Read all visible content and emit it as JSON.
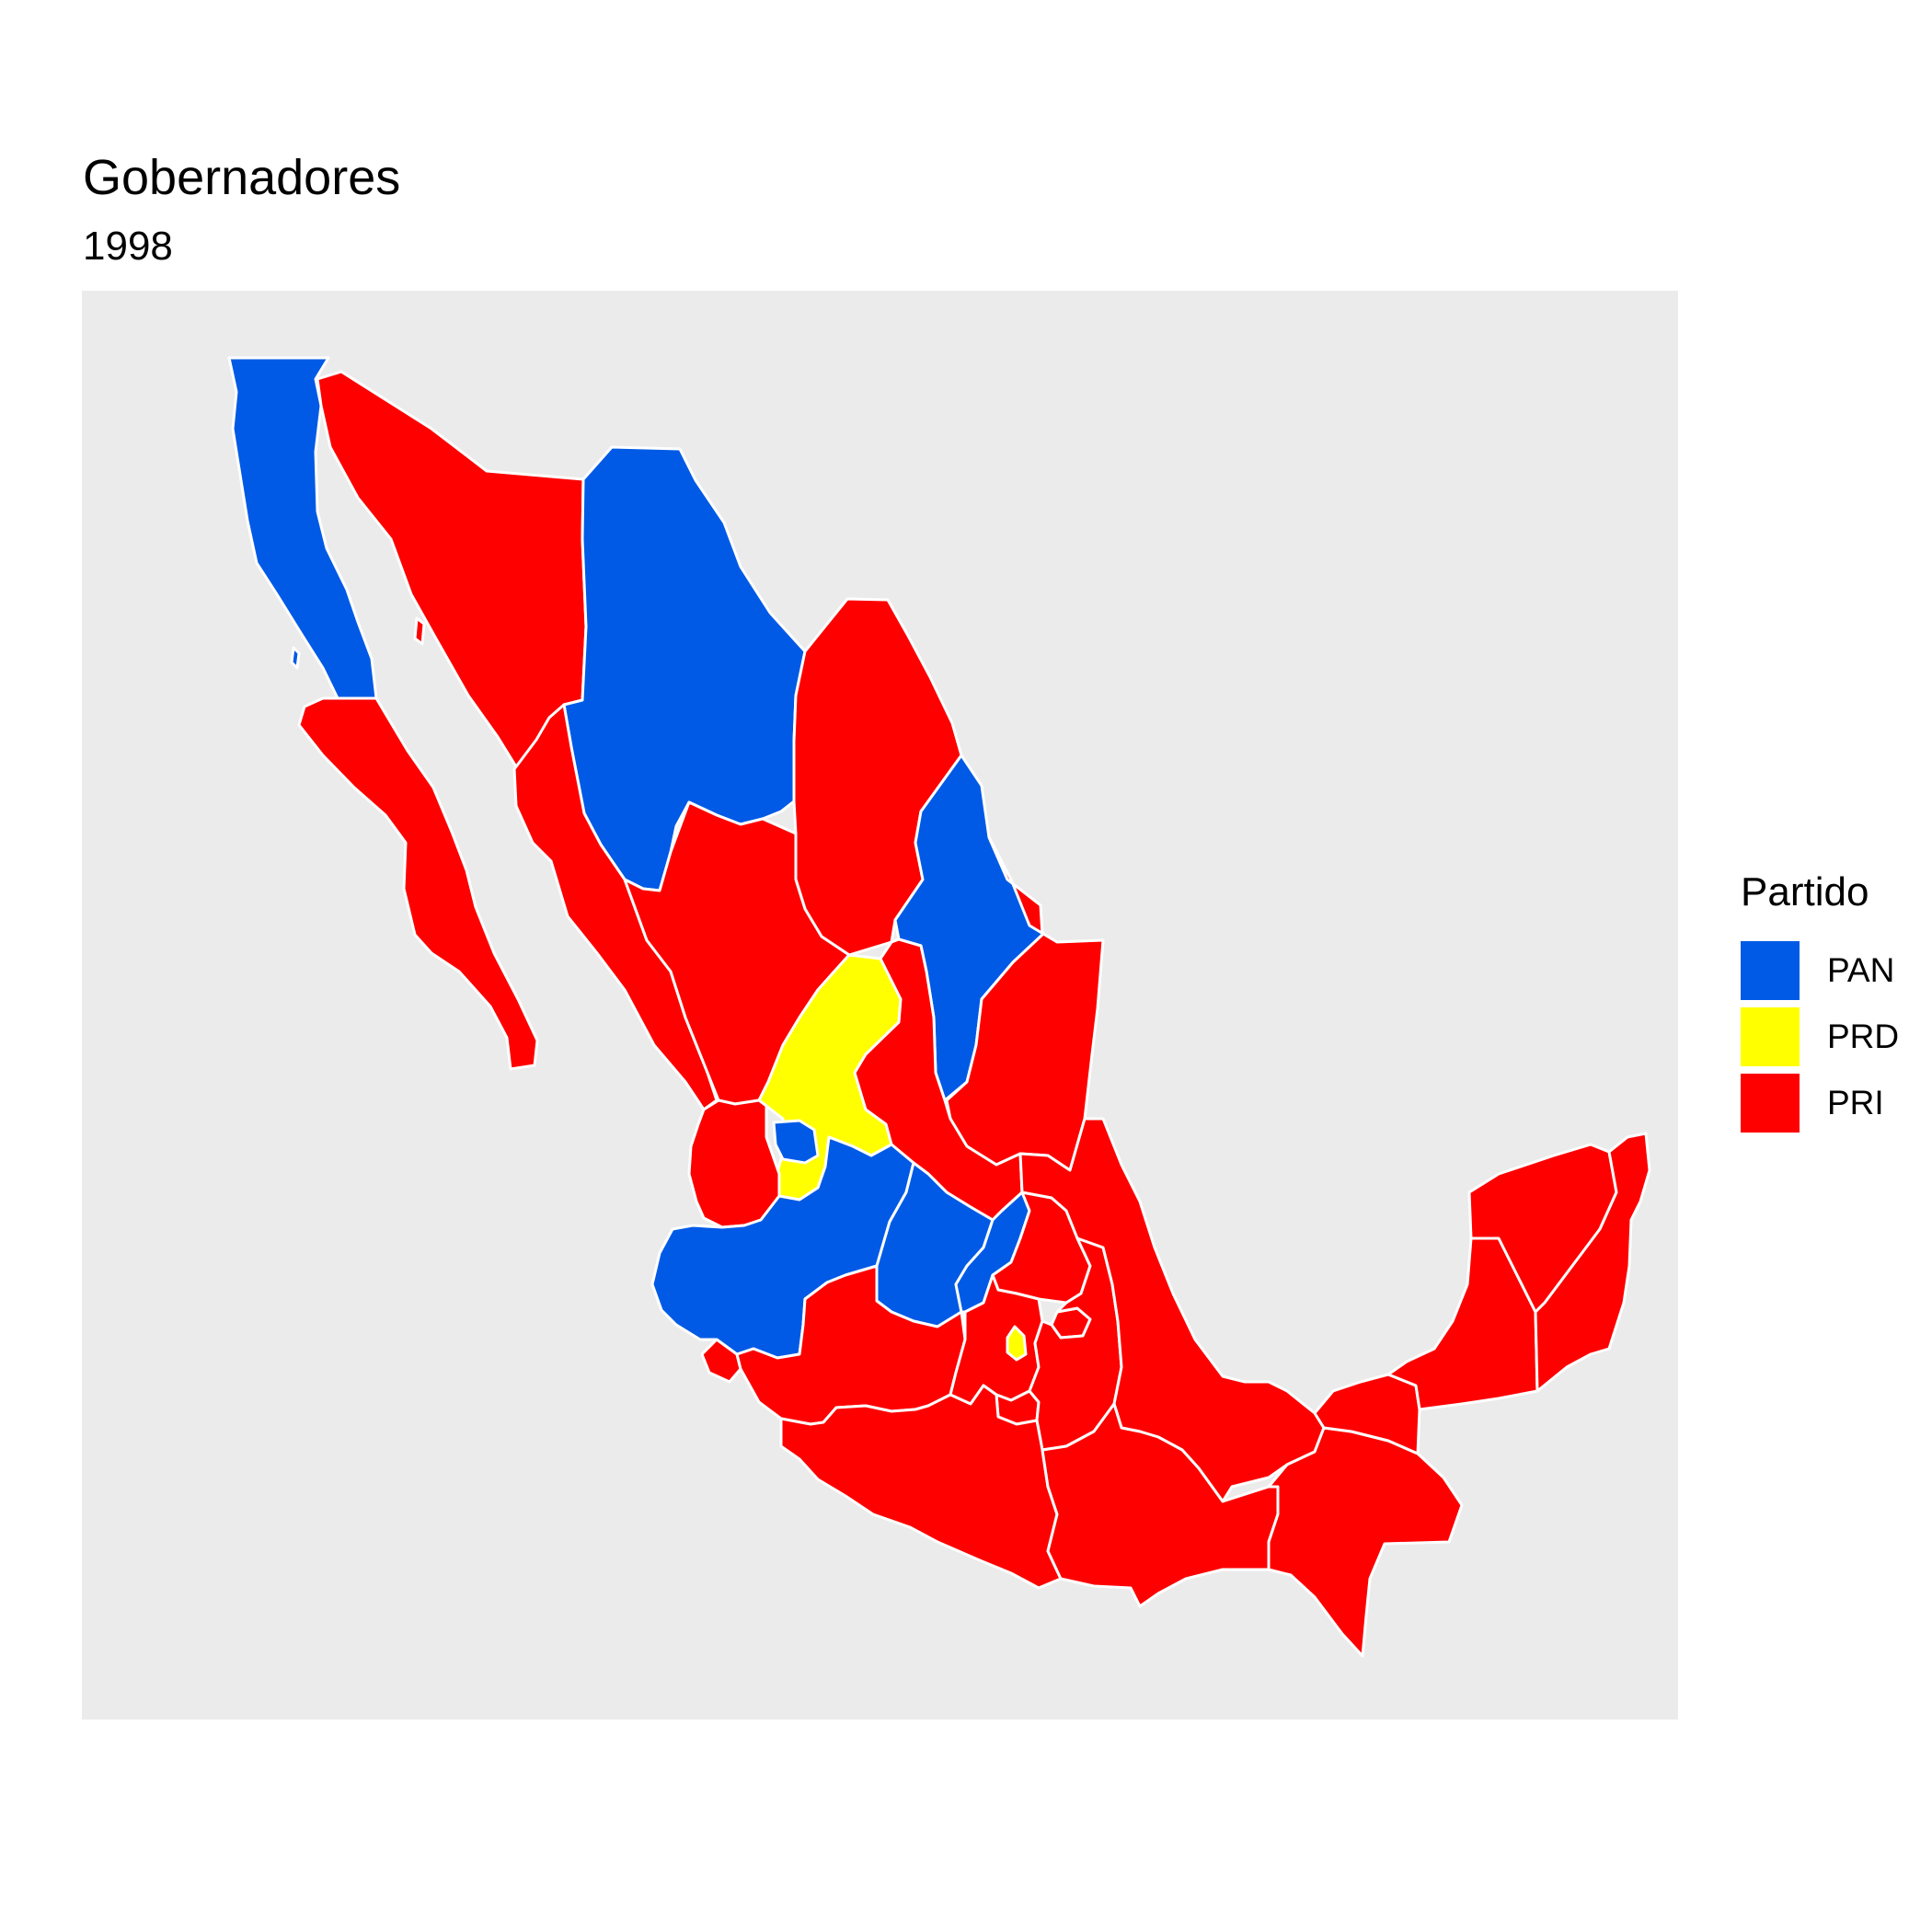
{
  "title": "Gobernadores",
  "subtitle": "1998",
  "legend": {
    "title": "Partido",
    "items": [
      {
        "label": "PAN",
        "color": "#005ae6"
      },
      {
        "label": "PRD",
        "color": "#ffff00"
      },
      {
        "label": "PRI",
        "color": "#ff0000"
      }
    ]
  },
  "colors": {
    "panel_background": "#ebebeb",
    "border": "#ffffff"
  },
  "chart_data": {
    "type": "choropleth",
    "title": "Gobernadores",
    "subtitle": "1998",
    "legend_title": "Partido",
    "legend_position": "right",
    "categories": [
      "PAN",
      "PRD",
      "PRI"
    ],
    "regions": [
      {
        "state": "Baja California",
        "party": "PAN"
      },
      {
        "state": "Baja California Sur",
        "party": "PRI"
      },
      {
        "state": "Sonora",
        "party": "PRI"
      },
      {
        "state": "Chihuahua",
        "party": "PAN"
      },
      {
        "state": "Coahuila",
        "party": "PRI"
      },
      {
        "state": "Nuevo León",
        "party": "PAN"
      },
      {
        "state": "Tamaulipas",
        "party": "PRI"
      },
      {
        "state": "Sinaloa",
        "party": "PRI"
      },
      {
        "state": "Durango",
        "party": "PRI"
      },
      {
        "state": "Zacatecas",
        "party": "PRD"
      },
      {
        "state": "San Luis Potosí",
        "party": "PRI"
      },
      {
        "state": "Nayarit",
        "party": "PRI"
      },
      {
        "state": "Aguascalientes",
        "party": "PAN"
      },
      {
        "state": "Jalisco",
        "party": "PAN"
      },
      {
        "state": "Guanajuato",
        "party": "PAN"
      },
      {
        "state": "Querétaro",
        "party": "PAN"
      },
      {
        "state": "Hidalgo",
        "party": "PRI"
      },
      {
        "state": "Colima",
        "party": "PRI"
      },
      {
        "state": "Michoacán",
        "party": "PRI"
      },
      {
        "state": "Estado de México",
        "party": "PRI"
      },
      {
        "state": "Distrito Federal",
        "party": "PRD"
      },
      {
        "state": "Morelos",
        "party": "PRI"
      },
      {
        "state": "Tlaxcala",
        "party": "PRI"
      },
      {
        "state": "Puebla",
        "party": "PRI"
      },
      {
        "state": "Veracruz",
        "party": "PRI"
      },
      {
        "state": "Guerrero",
        "party": "PRI"
      },
      {
        "state": "Oaxaca",
        "party": "PRI"
      },
      {
        "state": "Chiapas",
        "party": "PRI"
      },
      {
        "state": "Tabasco",
        "party": "PRI"
      },
      {
        "state": "Campeche",
        "party": "PRI"
      },
      {
        "state": "Yucatán",
        "party": "PRI"
      },
      {
        "state": "Quintana Roo",
        "party": "PRI"
      }
    ]
  }
}
